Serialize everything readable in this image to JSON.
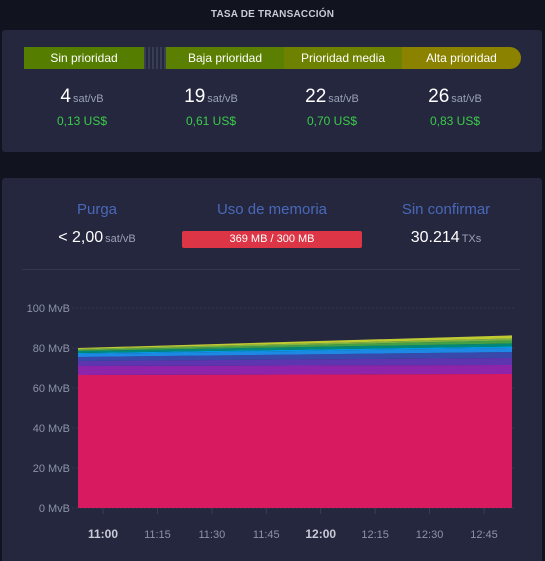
{
  "header": {
    "title": "TASA DE TRANSACCIÓN"
  },
  "fees": {
    "bar": [
      {
        "label": "Sin prioridad",
        "color": "#557d00"
      },
      {
        "label": "Baja prioridad",
        "color": "#5b7f00"
      },
      {
        "label": "Prioridad media",
        "color": "#6f8100"
      },
      {
        "label": "Alta prioridad",
        "color": "#8b8200"
      }
    ],
    "columns": [
      {
        "rate": "4",
        "unit": "sat/vB",
        "usd": "0,13 US$"
      },
      {
        "rate": "19",
        "unit": "sat/vB",
        "usd": "0,61 US$"
      },
      {
        "rate": "22",
        "unit": "sat/vB",
        "usd": "0,70 US$"
      },
      {
        "rate": "26",
        "unit": "sat/vB",
        "usd": "0,83 US$"
      }
    ]
  },
  "mempool": {
    "purge": {
      "label": "Purga",
      "value": "< 2,00",
      "unit": "sat/vB"
    },
    "memory": {
      "label": "Uso de memoria",
      "value": "369 MB / 300 MB",
      "usage_fraction": 1.23,
      "color": "#dc3545"
    },
    "unconfirmed": {
      "label": "Sin confirmar",
      "value": "30.214",
      "unit": "TXs"
    }
  },
  "chart_data": {
    "type": "area",
    "ylim": [
      0,
      100
    ],
    "yticks": [
      "0 MvB",
      "20 MvB",
      "40 MvB",
      "60 MvB",
      "80 MvB",
      "100 MvB"
    ],
    "xticks": [
      {
        "label": "11:00",
        "bold": true
      },
      {
        "label": "11:15",
        "bold": false
      },
      {
        "label": "11:30",
        "bold": false
      },
      {
        "label": "11:45",
        "bold": false
      },
      {
        "label": "12:00",
        "bold": true
      },
      {
        "label": "12:15",
        "bold": false
      },
      {
        "label": "12:30",
        "bold": false
      },
      {
        "label": "12:45",
        "bold": false
      }
    ],
    "grid": true,
    "series": [
      {
        "color": "#d81b60",
        "start": 66.5,
        "end": 67
      },
      {
        "color": "#8e24aa",
        "start": 4.5,
        "end": 4.5
      },
      {
        "color": "#5e35b1",
        "start": 2.5,
        "end": 3.5
      },
      {
        "color": "#3949ab",
        "start": 2,
        "end": 3
      },
      {
        "color": "#1e88e5",
        "start": 1.5,
        "end": 2
      },
      {
        "color": "#039be5",
        "start": 0.5,
        "end": 0.8
      },
      {
        "color": "#00897b",
        "start": 1,
        "end": 1.5
      },
      {
        "color": "#43a047",
        "start": 0.5,
        "end": 1.5
      },
      {
        "color": "#7cb342",
        "start": 0.5,
        "end": 1
      },
      {
        "color": "#c0ca33",
        "start": 0.5,
        "end": 1.5
      }
    ]
  }
}
